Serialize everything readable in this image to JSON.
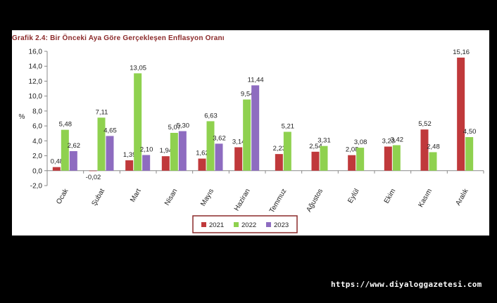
{
  "chart_data": {
    "type": "bar",
    "title": "Grafik 2.4: Bir Önceki Aya Göre Gerçekleşen Enflasyon Oranı",
    "ylabel": "%",
    "xlabel": "",
    "ylim": [
      -2.0,
      16.0
    ],
    "y_ticks": [
      "-2,0",
      "0,0",
      "2,0",
      "4,0",
      "6,0",
      "8,0",
      "10,0",
      "12,0",
      "14,0",
      "16,0"
    ],
    "grid": false,
    "legend_position": "bottom",
    "categories": [
      "Ocak",
      "Şubat",
      "Mart",
      "Nisan",
      "Mayıs",
      "Haziran",
      "Temmuz",
      "Ağustos",
      "Eylül",
      "Ekim",
      "Kasım",
      "Aralık"
    ],
    "series": [
      {
        "name": "2021",
        "color": "#c0393b",
        "values": [
          0.48,
          -0.02,
          1.39,
          1.94,
          1.62,
          3.14,
          2.23,
          2.54,
          2.08,
          3.23,
          5.52,
          15.16
        ],
        "labels": [
          "0,48",
          "-0,02",
          "1,39",
          "1,94",
          "1,62",
          "3,14",
          "2,23",
          "2,54",
          "2,08",
          "3,23",
          "5,52",
          "15,16"
        ]
      },
      {
        "name": "2022",
        "color": "#8fd14f",
        "values": [
          5.48,
          7.11,
          13.05,
          5.07,
          6.63,
          9.54,
          5.21,
          3.31,
          3.08,
          3.42,
          2.48,
          4.5
        ],
        "labels": [
          "5,48",
          "7,11",
          "13,05",
          "5,07",
          "6,63",
          "9,54",
          "5,21",
          "3,31",
          "3,08",
          "3,42",
          "2,48",
          "4,50"
        ]
      },
      {
        "name": "2023",
        "color": "#8e6cc0",
        "values": [
          2.62,
          4.65,
          2.1,
          5.3,
          3.62,
          11.44,
          null,
          null,
          null,
          null,
          null,
          null
        ],
        "labels": [
          "2,62",
          "4,65",
          "2,10",
          "5,30",
          "3,62",
          "11,44",
          null,
          null,
          null,
          null,
          null,
          null
        ]
      }
    ]
  },
  "source": "https://www.diyaloggazetesi.com"
}
